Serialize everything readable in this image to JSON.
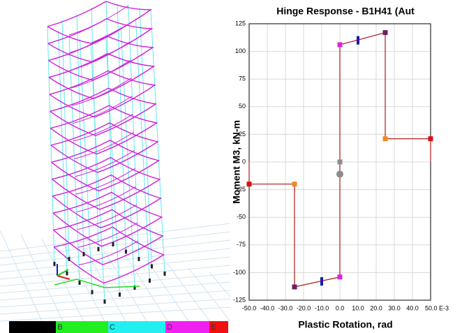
{
  "chart_data": {
    "type": "line",
    "title": "Hinge Response - B1H41 (Aut",
    "x_label": "Plastic Rotation, rad",
    "y_label": "Moment M3, kN-m",
    "x": [
      -50,
      -50,
      -25,
      -25,
      0,
      0,
      25,
      25,
      50,
      50
    ],
    "values": [
      0,
      -20,
      -20,
      -113,
      -104,
      106,
      117,
      21,
      21,
      0
    ],
    "color": "#b01818",
    "markers": {
      "x": [
        0,
        0,
        25,
        25,
        50,
        0,
        -25,
        -25,
        -50
      ],
      "y": [
        0,
        106,
        117,
        21,
        21,
        -104,
        -113,
        -20,
        -20
      ],
      "colors": [
        "#8c8c8c",
        "#e020e0",
        "#6a2060",
        "#f08a20",
        "#d81010",
        "#e020e0",
        "#6a2060",
        "#f08a20",
        "#d81010"
      ]
    },
    "acceptance_marks": {
      "x": [
        10,
        -10
      ],
      "y": [
        110,
        -108
      ],
      "color": "#1a1aa8"
    },
    "state_point": {
      "x": 0,
      "y": -11,
      "color": "#8c8c8c"
    },
    "xlim": [
      -50,
      50
    ],
    "ylim": [
      -125,
      125
    ],
    "xticks": [
      {
        "value": -50,
        "label": "-50.0"
      },
      {
        "value": -40,
        "label": "-40.0"
      },
      {
        "value": -30,
        "label": "-30.0"
      },
      {
        "value": -20,
        "label": "-20.0"
      },
      {
        "value": -10,
        "label": "-10.0"
      },
      {
        "value": 0,
        "label": "0.0"
      },
      {
        "value": 10,
        "label": "10.0"
      },
      {
        "value": 20,
        "label": "20.0"
      },
      {
        "value": 30,
        "label": "30.0"
      },
      {
        "value": 40,
        "label": "40.0"
      },
      {
        "value": 50,
        "label": "50.0 E-3"
      }
    ],
    "yticks": [
      -125,
      -100,
      -75,
      -50,
      -25,
      0,
      25,
      50,
      75,
      100,
      125
    ],
    "grid": true
  },
  "color_scale": {
    "labels": [
      "B",
      "C",
      "D",
      "E"
    ],
    "colors": [
      "#000000",
      "#22ee22",
      "#22f0f0",
      "#f020f0",
      "#f01010"
    ]
  }
}
